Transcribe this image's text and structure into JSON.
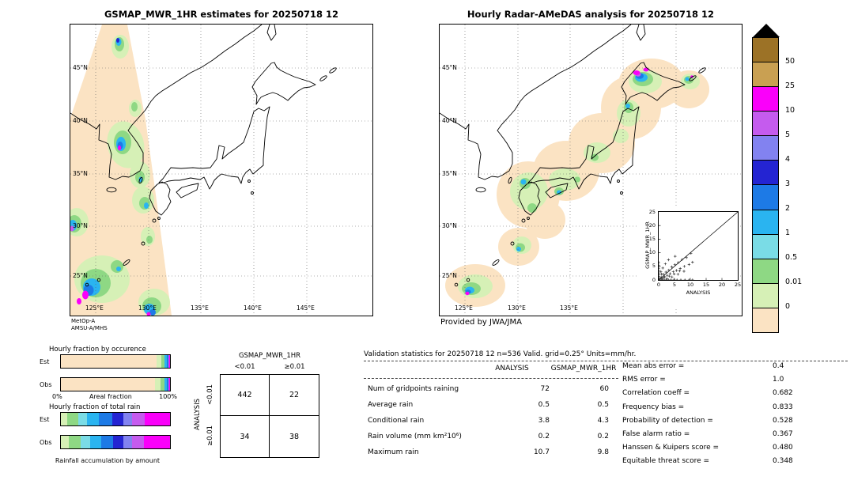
{
  "maps": {
    "left": {
      "lat_ticks": [
        "45°N",
        "40°N",
        "35°N",
        "30°N",
        "25°N"
      ],
      "lon_ticks": [
        "125°E",
        "130°E",
        "135°E",
        "140°E",
        "145°E"
      ],
      "source_line1": "MetOp-A",
      "source_line2": "AMSU-A/MHS"
    },
    "right": {
      "lat_ticks": [
        "45°N",
        "40°N",
        "35°N",
        "30°N",
        "25°N"
      ],
      "lon_ticks": [
        "125°E",
        "130°E",
        "135°E"
      ],
      "credit": "Provided by JWA/JMA"
    }
  },
  "colorbar": {
    "boundary_labels": [
      "50",
      "25",
      "10",
      "5",
      "4",
      "3",
      "2",
      "1",
      "0.5",
      "0.01",
      "0"
    ],
    "colors": [
      "#9c7226",
      "#c9a052",
      "#fa00fa",
      "#c55bee",
      "#8282f0",
      "#2424d2",
      "#1d7ae6",
      "#2ab4f0",
      "#7adce6",
      "#8ed884",
      "#d6f0b6",
      "#fbe3c3"
    ]
  },
  "chart_data": [
    {
      "type": "heatmap",
      "title": "GSMAP_MWR_1HR estimates for 20250718 12",
      "units": "mm/hr",
      "levels": [
        0,
        0.01,
        0.5,
        1,
        2,
        3,
        4,
        5,
        10,
        25,
        50
      ]
    },
    {
      "type": "heatmap",
      "title": "Hourly Radar-AMeDAS analysis for 20250718 12",
      "units": "mm/hr",
      "levels": [
        0,
        0.01,
        0.5,
        1,
        2,
        3,
        4,
        5,
        10,
        25,
        50
      ]
    },
    {
      "type": "scatter",
      "title": "GSMAP_MWR_1HR vs ANALYSIS",
      "xlabel": "ANALYSIS",
      "ylabel": "GSMAP_MWR_1HR",
      "xlim": [
        0,
        25
      ],
      "ylim": [
        0,
        25
      ],
      "x_tick_labels": [
        "0",
        "5",
        "10",
        "15",
        "20",
        "25"
      ],
      "y_tick_labels": [
        "0",
        "5",
        "10",
        "15",
        "20",
        "25"
      ],
      "points": [
        [
          0.4,
          0
        ],
        [
          0.9,
          0
        ],
        [
          1.3,
          0
        ],
        [
          1.8,
          0
        ],
        [
          2.4,
          0
        ],
        [
          3.1,
          0
        ],
        [
          3.9,
          0
        ],
        [
          4.8,
          0
        ],
        [
          5.8,
          0
        ],
        [
          7,
          0
        ],
        [
          8.3,
          0
        ],
        [
          9.6,
          0
        ],
        [
          10.7,
          0
        ],
        [
          0,
          0.4
        ],
        [
          0,
          0.8
        ],
        [
          0,
          1.3
        ],
        [
          0,
          1.9
        ],
        [
          0,
          2.6
        ],
        [
          0,
          3.4
        ],
        [
          0,
          4.3
        ],
        [
          0,
          5.3
        ],
        [
          0,
          6.4
        ],
        [
          0.5,
          0.4
        ],
        [
          0.8,
          1.1
        ],
        [
          1.1,
          0.6
        ],
        [
          1.5,
          2.1
        ],
        [
          1.9,
          1.2
        ],
        [
          2.3,
          2.9
        ],
        [
          2.7,
          1.7
        ],
        [
          3.2,
          3.6
        ],
        [
          3.6,
          2.3
        ],
        [
          4.1,
          4.8
        ],
        [
          4.6,
          3
        ],
        [
          5.1,
          5.6
        ],
        [
          5.6,
          3.5
        ],
        [
          6.2,
          6.4
        ],
        [
          6.8,
          4.2
        ],
        [
          7.4,
          7.5
        ],
        [
          8.1,
          5
        ],
        [
          8.8,
          8.2
        ],
        [
          9.6,
          5.7
        ],
        [
          10.2,
          9.8
        ],
        [
          10.7,
          6.5
        ],
        [
          2.1,
          5.9
        ],
        [
          1.3,
          4.4
        ],
        [
          0.7,
          3.1
        ],
        [
          4.2,
          1.1
        ],
        [
          6.1,
          2.1
        ],
        [
          8,
          3.2
        ],
        [
          3.1,
          7.4
        ],
        [
          5.2,
          8.7
        ],
        [
          2.6,
          0.5
        ],
        [
          1.7,
          0.9
        ],
        [
          0.9,
          2.2
        ],
        [
          3.4,
          1.4
        ],
        [
          4.9,
          2.2
        ],
        [
          6.6,
          3.3
        ]
      ]
    },
    {
      "type": "table",
      "title": "GSMAP_MWR_1HR",
      "row_axis": "ANALYSIS",
      "columns": [
        "<0.01",
        "≥0.01"
      ],
      "rows": [
        "<0.01",
        "≥0.01"
      ],
      "values": [
        [
          442,
          22
        ],
        [
          34,
          38
        ]
      ]
    },
    {
      "type": "table",
      "title": "Validation statistics for 20250718 12  n=536 Valid. grid=0.25° Units=mm/hr.",
      "columns": [
        "ANALYSIS",
        "GSMAP_MWR_1HR"
      ],
      "rows": [
        {
          "label": "Num of gridpoints raining",
          "values": [
            "72",
            "60"
          ]
        },
        {
          "label": "Average rain",
          "values": [
            "0.5",
            "0.5"
          ]
        },
        {
          "label": "Conditional rain",
          "values": [
            "3.8",
            "4.3"
          ]
        },
        {
          "label": "Rain volume (mm km²10⁶)",
          "values": [
            "0.2",
            "0.2"
          ]
        },
        {
          "label": "Maximum rain",
          "values": [
            "10.7",
            "9.8"
          ]
        }
      ],
      "scores": [
        {
          "label": "Mean abs error =",
          "value": "0.4"
        },
        {
          "label": "RMS error =",
          "value": "1.0"
        },
        {
          "label": "Correlation coeff =",
          "value": "0.682"
        },
        {
          "label": "Frequency bias =",
          "value": "0.833"
        },
        {
          "label": "Probability of detection =",
          "value": "0.528"
        },
        {
          "label": "False alarm ratio =",
          "value": "0.367"
        },
        {
          "label": "Hanssen & Kuipers score =",
          "value": "0.480"
        },
        {
          "label": "Equitable threat score =",
          "value": "0.348"
        }
      ]
    },
    {
      "type": "bar",
      "stacked": true,
      "title": "Hourly fraction by occurence",
      "xlabel_left": "0%",
      "xlabel_center": "Areal fraction",
      "xlabel_right": "100%",
      "categories": [
        "Est",
        "Obs"
      ],
      "series": [
        {
          "name": "0-0.01",
          "color": "#fbe3c3",
          "values": [
            87.5,
            86.3
          ]
        },
        {
          "name": "0.01-0.5",
          "color": "#d6f0b6",
          "values": [
            4.5,
            5.2
          ]
        },
        {
          "name": "0.5-1",
          "color": "#8ed884",
          "values": [
            3.0,
            3.2
          ]
        },
        {
          "name": "1-2",
          "color": "#2ab4f0",
          "values": [
            2.0,
            2.2
          ]
        },
        {
          "name": "2-3",
          "color": "#1d7ae6",
          "values": [
            1.3,
            1.4
          ]
        },
        {
          "name": "5-10",
          "color": "#c55bee",
          "values": [
            1.0,
            1.0
          ]
        },
        {
          "name": "10-25",
          "color": "#fa00fa",
          "values": [
            0.7,
            0.7
          ]
        }
      ]
    },
    {
      "type": "bar",
      "stacked": true,
      "title": "Hourly fraction of total rain",
      "footer": "Rainfall accumulation by amount",
      "categories": [
        "Est",
        "Obs"
      ],
      "series": [
        {
          "name": "0.01-0.5",
          "color": "#d6f0b6",
          "values": [
            6,
            7
          ]
        },
        {
          "name": "0.5-1",
          "color": "#8ed884",
          "values": [
            10,
            11
          ]
        },
        {
          "name": "1-2",
          "color": "#7adce6",
          "values": [
            8,
            9
          ]
        },
        {
          "name": "2-3",
          "color": "#2ab4f0",
          "values": [
            11,
            10
          ]
        },
        {
          "name": "3-4",
          "color": "#1d7ae6",
          "values": [
            12,
            11
          ]
        },
        {
          "name": "4-5",
          "color": "#2424d2",
          "values": [
            10,
            9
          ]
        },
        {
          "name": "5-10",
          "color": "#8282f0",
          "values": [
            8,
            8
          ]
        },
        {
          "name": "10-25",
          "color": "#c55bee",
          "values": [
            12,
            11
          ]
        },
        {
          "name": "25-50",
          "color": "#fa00fa",
          "values": [
            23,
            24
          ]
        }
      ]
    }
  ]
}
